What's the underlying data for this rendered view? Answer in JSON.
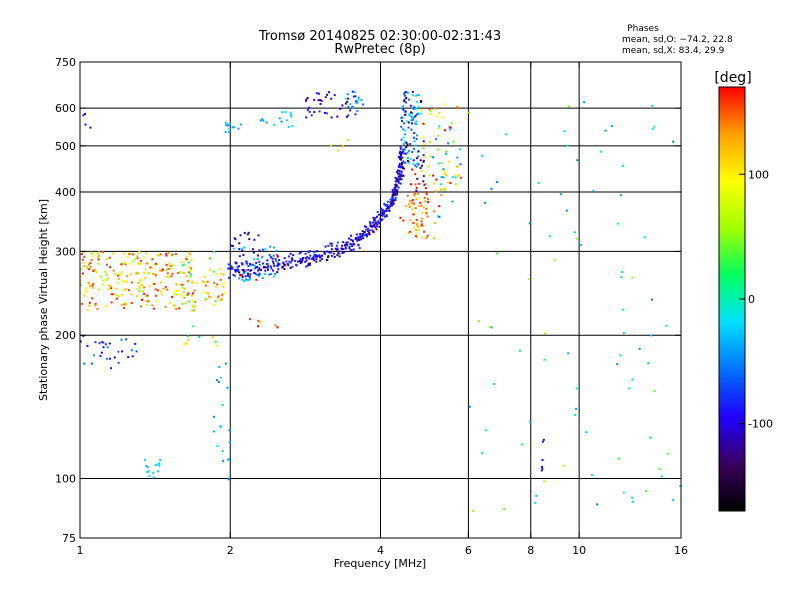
{
  "chart_data": {
    "type": "scatter",
    "title": "Tromsø 20140825 02:30:00-02:31:43",
    "subtitle": "RwPretec (8p)",
    "xlabel": "Frequency [MHz]",
    "ylabel": "Stationary phase Virtual Height [km]",
    "x_scale": "log",
    "y_scale": "log",
    "xlim": [
      1,
      16
    ],
    "ylim": [
      75,
      750
    ],
    "x_ticks": [
      1,
      2,
      4,
      6,
      8,
      10,
      16
    ],
    "x_ticklabels": [
      "1",
      "2",
      "4",
      "6",
      "8",
      "10",
      "16"
    ],
    "x_gridlines": [
      2,
      4,
      6,
      8,
      10
    ],
    "y_ticks": [
      75,
      100,
      200,
      300,
      400,
      500,
      600,
      750
    ],
    "y_ticklabels": [
      "75",
      "100",
      "200",
      "300",
      "400",
      "500",
      "600",
      "750"
    ],
    "y_gridlines": [
      100,
      200,
      300,
      400,
      500,
      600
    ],
    "grid": true,
    "colorbar": {
      "label": "[deg]",
      "range": [
        -170,
        170
      ],
      "ticks": [
        100,
        0,
        -100
      ],
      "ticklabels": [
        "100",
        "0",
        "-100"
      ],
      "colors": [
        "#000000",
        "#3a0060",
        "#2000ff",
        "#0070ff",
        "#00e0ff",
        "#00ff60",
        "#a0ff00",
        "#ffff00",
        "#ffa000",
        "#ff0000"
      ]
    },
    "annotations": {
      "heading": "Phases",
      "line1": "mean, sd,O: −74.2, 22.8",
      "line2": "mean, sd,X:  83.4, 29.9"
    },
    "series": [
      {
        "clusters": [
          [
            1.0,
            1.7,
            225,
            300,
            260,
            110,
            1.0
          ],
          [
            1.0,
            1.3,
            170,
            200,
            30,
            -80,
            0.6
          ],
          [
            1.0,
            1.05,
            520,
            600,
            4,
            -100,
            0.2
          ],
          [
            1.6,
            1.9,
            190,
            300,
            30,
            60,
            1.0
          ],
          [
            1.75,
            1.95,
            230,
            280,
            30,
            120,
            0.6
          ],
          [
            2.0,
            2.5,
            260,
            310,
            50,
            -40,
            0.5
          ],
          [
            2.0,
            2.3,
            290,
            330,
            20,
            -110,
            0.4
          ],
          [
            2.0,
            2.5,
            200,
            300,
            12,
            150,
            1.0
          ],
          [
            1.95,
            2.1,
            530,
            560,
            12,
            -30,
            0.3
          ],
          [
            2.3,
            2.7,
            540,
            590,
            15,
            -30,
            0.4
          ],
          [
            2.8,
            3.6,
            570,
            650,
            40,
            -105,
            0.5
          ],
          [
            3.4,
            3.7,
            590,
            650,
            15,
            -40,
            0.4
          ],
          [
            3.0,
            3.5,
            480,
            520,
            4,
            90,
            0.8
          ],
          [
            1.85,
            2.0,
            97,
            180,
            20,
            -30,
            0.4
          ],
          [
            1.35,
            1.45,
            100,
            110,
            15,
            -20,
            0.3
          ],
          [
            4.4,
            4.8,
            450,
            650,
            80,
            -40,
            0.6
          ],
          [
            4.4,
            4.9,
            400,
            650,
            40,
            -110,
            0.6
          ],
          [
            4.5,
            5.0,
            320,
            400,
            40,
            130,
            0.6
          ],
          [
            4.6,
            5.3,
            340,
            450,
            30,
            150,
            0.5
          ],
          [
            4.8,
            5.8,
            400,
            620,
            40,
            80,
            0.7
          ],
          [
            5.0,
            5.8,
            350,
            560,
            20,
            -30,
            0.5
          ],
          [
            4.3,
            5.8,
            300,
            620,
            15,
            170,
            1.0
          ],
          [
            6.0,
            16.0,
            85,
            620,
            85,
            0,
            1.0
          ],
          [
            8.4,
            8.5,
            100,
            125,
            6,
            -95,
            0.3
          ]
        ]
      },
      {
        "curve": [
          [
            1.98,
            270
          ],
          [
            2.2,
            272
          ],
          [
            2.5,
            278
          ],
          [
            2.8,
            285
          ],
          [
            3.0,
            290
          ],
          [
            3.3,
            300
          ],
          [
            3.6,
            312
          ],
          [
            3.8,
            330
          ],
          [
            4.0,
            350
          ],
          [
            4.2,
            375
          ],
          [
            4.3,
            400
          ],
          [
            4.38,
            440
          ],
          [
            4.42,
            480
          ]
        ]
      }
    ]
  }
}
